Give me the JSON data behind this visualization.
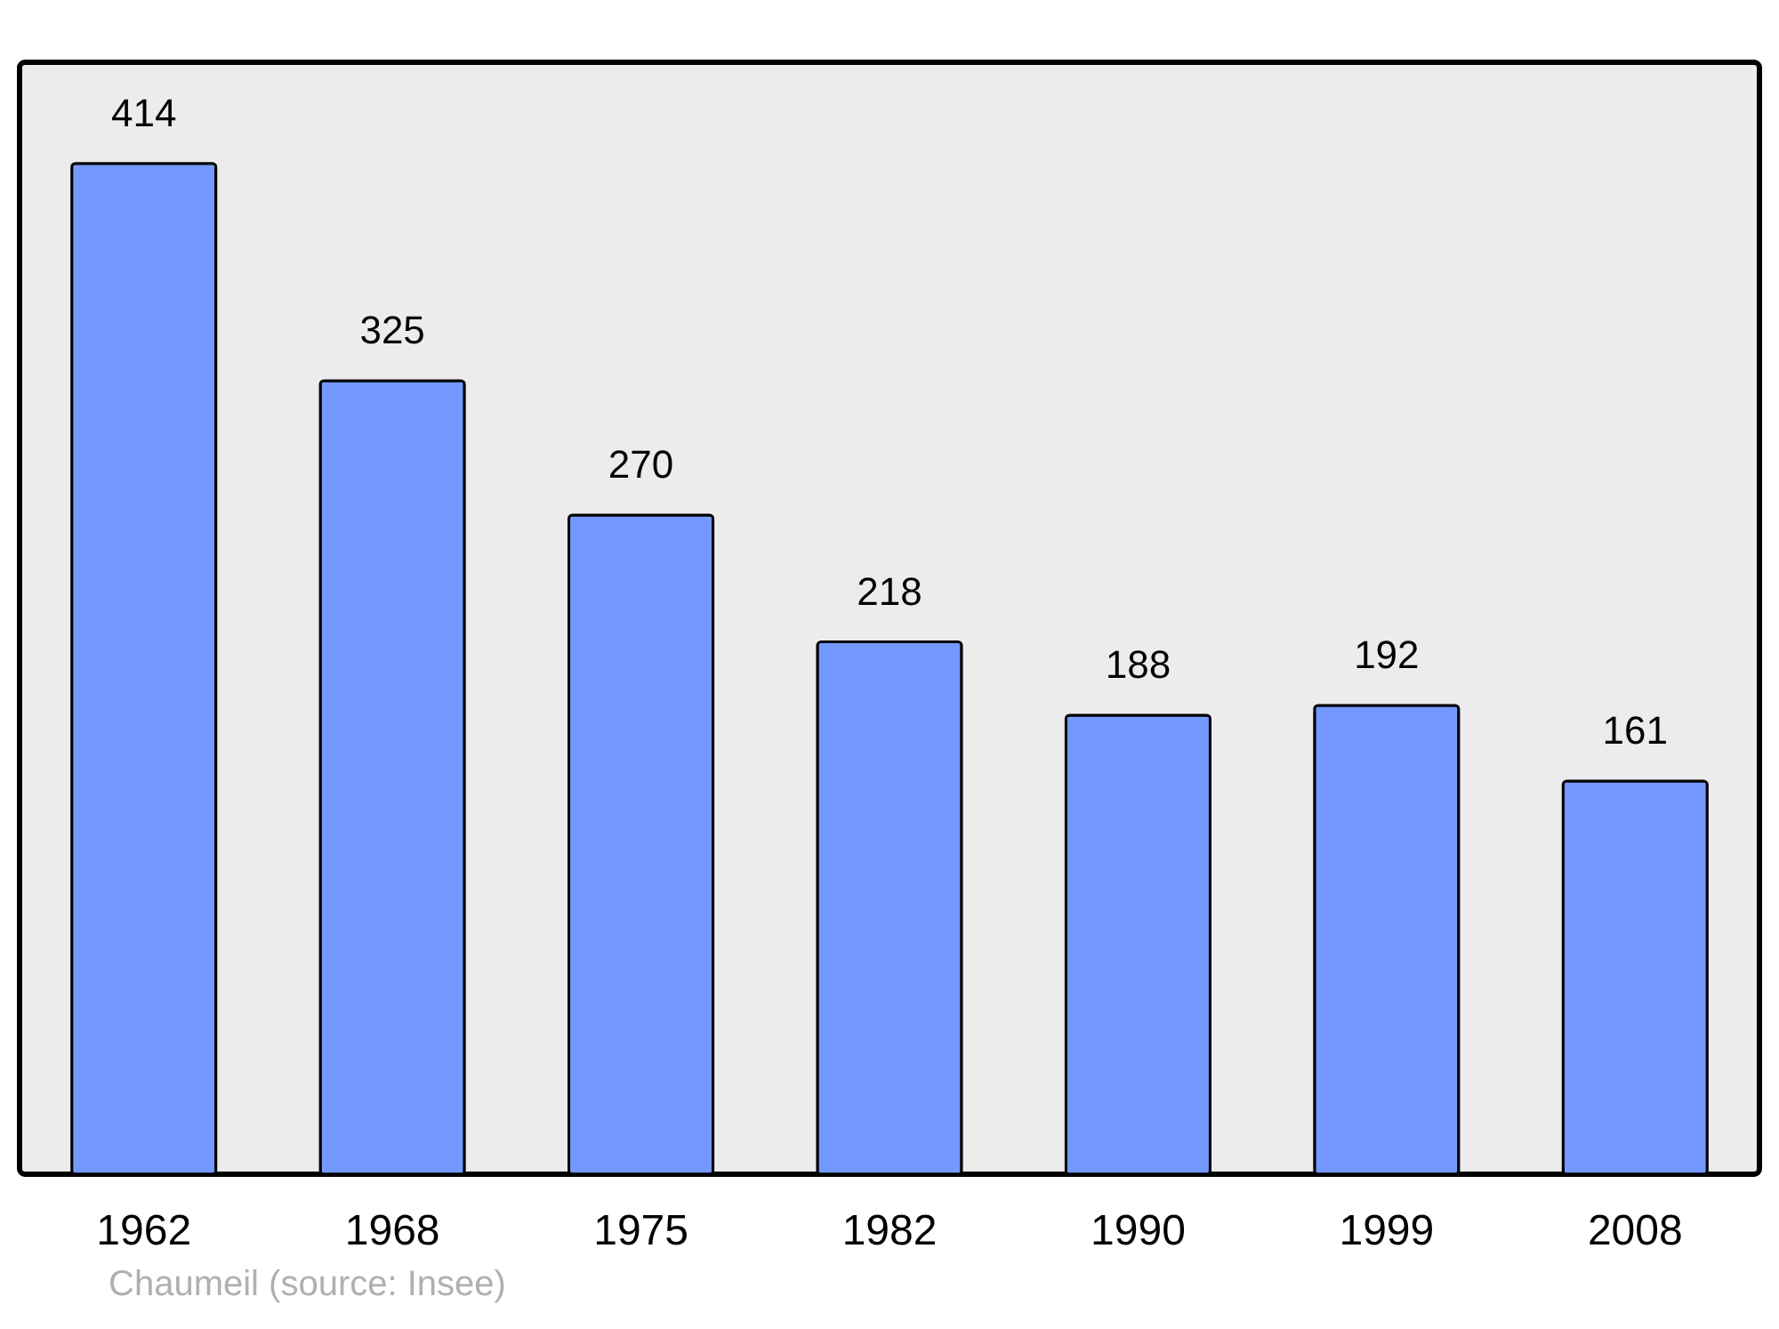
{
  "chart_data": {
    "type": "bar",
    "categories": [
      "1962",
      "1968",
      "1975",
      "1982",
      "1990",
      "1999",
      "2008"
    ],
    "values": [
      414,
      325,
      270,
      218,
      188,
      192,
      161
    ],
    "color": "#7399ff",
    "data_labels": true,
    "annotations": [
      "Chaumeil    (source: Insee)"
    ]
  }
}
